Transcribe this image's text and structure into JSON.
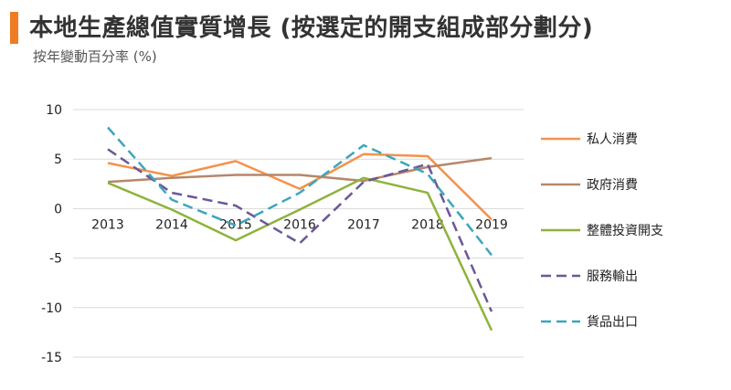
{
  "header": {
    "title": "本地生產總值實質增長 (按選定的開支組成部分劃分)",
    "subtitle": "按年變動百分率 (%)",
    "accent_color": "#f07c22"
  },
  "chart_data": {
    "type": "line",
    "categories": [
      "2013",
      "2014",
      "2015",
      "2016",
      "2017",
      "2018",
      "2019"
    ],
    "ylim": [
      -15,
      10
    ],
    "yticks": [
      10,
      5,
      0,
      -5,
      -10,
      -15
    ],
    "grid": true,
    "legend_position": "right",
    "series": [
      {
        "name": "私人消費",
        "color": "#f5924a",
        "dashed": false,
        "values": [
          4.6,
          3.3,
          4.8,
          2.0,
          5.5,
          5.3,
          -1.1
        ]
      },
      {
        "name": "政府消費",
        "color": "#b5876a",
        "dashed": false,
        "values": [
          2.7,
          3.1,
          3.4,
          3.4,
          2.8,
          4.2,
          5.1
        ]
      },
      {
        "name": "整體投資開支",
        "color": "#8db33c",
        "dashed": false,
        "values": [
          2.6,
          -0.1,
          -3.2,
          -0.1,
          3.1,
          1.6,
          -12.3
        ]
      },
      {
        "name": "服務輸出",
        "color": "#6b5797",
        "dashed": true,
        "values": [
          6.0,
          1.6,
          0.3,
          -3.5,
          2.7,
          4.5,
          -10.4
        ]
      },
      {
        "name": "貨品出口",
        "color": "#3ba6bd",
        "dashed": true,
        "values": [
          8.2,
          0.9,
          -1.7,
          1.6,
          6.4,
          3.5,
          -4.7
        ]
      }
    ]
  }
}
